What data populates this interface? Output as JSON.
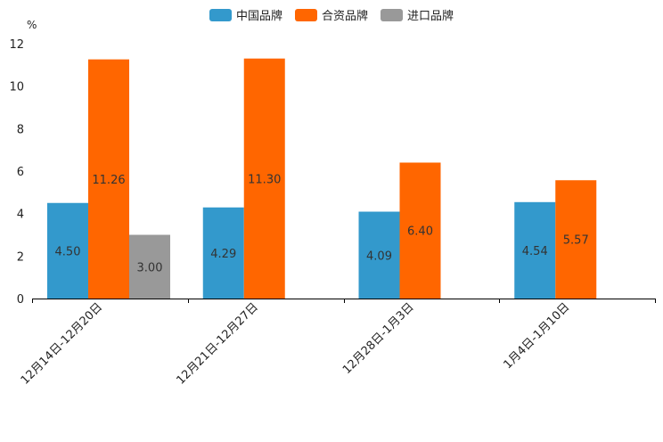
{
  "chart_data": {
    "type": "bar",
    "ylabel": "%",
    "ylim": [
      0,
      12
    ],
    "yticks": [
      0,
      2,
      4,
      6,
      8,
      10,
      12
    ],
    "categories": [
      "12月14日-12月20日",
      "12月21日-12月27日",
      "12月28日-1月3日",
      "1月4日-1月10日"
    ],
    "series": [
      {
        "name": "中国品牌",
        "color": "#3399cc",
        "values": [
          4.5,
          4.29,
          4.09,
          4.54
        ],
        "labels": [
          "4.50",
          "4.29",
          "4.09",
          "4.54"
        ]
      },
      {
        "name": "合资品牌",
        "color": "#ff6600",
        "values": [
          11.26,
          11.3,
          6.4,
          5.57
        ],
        "labels": [
          "11.26",
          "11.30",
          "6.40",
          "5.57"
        ]
      },
      {
        "name": "进口品牌",
        "color": "#999999",
        "values": [
          3.0,
          null,
          null,
          null
        ],
        "labels": [
          "3.00",
          null,
          null,
          null
        ]
      }
    ],
    "legend_position": "top-center",
    "grid": false
  }
}
